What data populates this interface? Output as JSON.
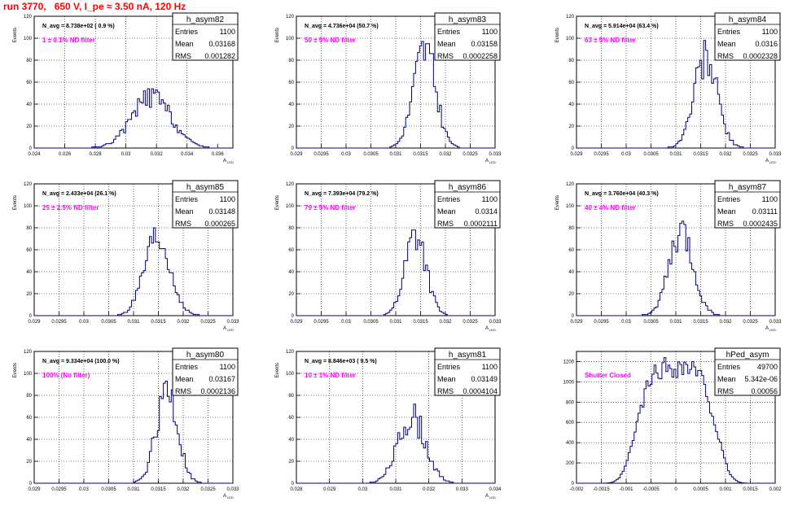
{
  "title": "run 3770,   650 V, I_pe ≈ 3.50 nA, 120 Hz",
  "colors": {
    "title": "#ff0000",
    "histogram": "#000080",
    "annotation": "#ff00ff",
    "grid": "#000000"
  },
  "chart_data": [
    {
      "type": "bar",
      "hist": "h_asym82",
      "ylabel": "Events",
      "xlabel": "A",
      "xlim": [
        0.024,
        0.037
      ],
      "ylim": [
        0,
        120
      ],
      "xticks": [
        0.024,
        0.026,
        0.028,
        0.03,
        0.032,
        0.034,
        0.036
      ],
      "xticklabels": [
        "0.024",
        "0.026",
        "0.028",
        "0.03",
        "0.032",
        "0.034",
        "0.036"
      ],
      "yticks": [
        0,
        20,
        40,
        60,
        80,
        100,
        120
      ],
      "navg": "N_avg = 8.738e+02 ( 0.9 %)",
      "filter": "1 ± 0.1% ND filter",
      "stats": {
        "name": "h_asym82",
        "entries": "1100",
        "mean": "0.03168",
        "rms": "0.001282"
      },
      "hist_params": {
        "mean": 0.03168,
        "sigma": 0.001282,
        "peak": 50,
        "seed": 82
      }
    },
    {
      "type": "bar",
      "hist": "h_asym83",
      "ylabel": "Events",
      "xlabel": "A",
      "xlim": [
        0.029,
        0.033
      ],
      "ylim": [
        0,
        120
      ],
      "xticks": [
        0.029,
        0.0295,
        0.03,
        0.0305,
        0.031,
        0.0315,
        0.032,
        0.0325,
        0.033
      ],
      "xticklabels": [
        "0.029",
        "0.0295",
        "0.03",
        "0.0305",
        "0.031",
        "0.0315",
        "0.032",
        "0.0325",
        "0.033"
      ],
      "yticks": [
        0,
        20,
        40,
        60,
        80,
        100,
        120
      ],
      "navg": "N_avg = 4.736e+04 (50.7 %)",
      "filter": "50 ± 5% ND filter",
      "stats": {
        "name": "h_asym83",
        "entries": "1100",
        "mean": "0.03158",
        "rms": "0.0002258"
      },
      "hist_params": {
        "mean": 0.03158,
        "sigma": 0.0002258,
        "peak": 96,
        "seed": 83
      }
    },
    {
      "type": "bar",
      "hist": "h_asym84",
      "ylabel": "Events",
      "xlabel": "A",
      "xlim": [
        0.029,
        0.033
      ],
      "ylim": [
        0,
        120
      ],
      "xticks": [
        0.029,
        0.0295,
        0.03,
        0.0305,
        0.031,
        0.0315,
        0.032,
        0.0325,
        0.033
      ],
      "xticklabels": [
        "0.029",
        "0.0295",
        "0.03",
        "0.0305",
        "0.031",
        "0.0315",
        "0.032",
        "0.0325",
        "0.033"
      ],
      "yticks": [
        0,
        20,
        40,
        60,
        80,
        100,
        120
      ],
      "navg": "N_avg = 5.914e+04 (63.4 %)",
      "filter": "63 ± 5% ND filter",
      "stats": {
        "name": "h_asym84",
        "entries": "1100",
        "mean": "0.0316",
        "rms": "0.0002328"
      },
      "hist_params": {
        "mean": 0.0316,
        "sigma": 0.0002328,
        "peak": 90,
        "seed": 84
      }
    },
    {
      "type": "bar",
      "hist": "h_asym85",
      "ylabel": "Events",
      "xlabel": "A",
      "xlim": [
        0.029,
        0.033
      ],
      "ylim": [
        0,
        120
      ],
      "xticks": [
        0.029,
        0.0295,
        0.03,
        0.0305,
        0.031,
        0.0315,
        0.032,
        0.0325,
        0.033
      ],
      "xticklabels": [
        "0.029",
        "0.0295",
        "0.03",
        "0.0305",
        "0.031",
        "0.0315",
        "0.032",
        "0.0325",
        "0.033"
      ],
      "yticks": [
        0,
        20,
        40,
        60,
        80,
        100,
        120
      ],
      "navg": "N_avg = 2.433e+04 (26.1 %)",
      "filter": "25 ± 2.5% ND filter",
      "stats": {
        "name": "h_asym85",
        "entries": "1100",
        "mean": "0.03148",
        "rms": "0.000265"
      },
      "hist_params": {
        "mean": 0.03148,
        "sigma": 0.000265,
        "peak": 72,
        "seed": 85
      }
    },
    {
      "type": "bar",
      "hist": "h_asym86",
      "ylabel": "Events",
      "xlabel": "A",
      "xlim": [
        0.029,
        0.033
      ],
      "ylim": [
        0,
        120
      ],
      "xticks": [
        0.029,
        0.0295,
        0.03,
        0.0305,
        0.031,
        0.0315,
        0.032,
        0.0325,
        0.033
      ],
      "xticklabels": [
        "0.029",
        "0.0295",
        "0.03",
        "0.0305",
        "0.031",
        "0.0315",
        "0.032",
        "0.0325",
        "0.033"
      ],
      "yticks": [
        0,
        20,
        40,
        60,
        80,
        100,
        120
      ],
      "navg": "N_avg = 7.393e+04 (79.2 %)",
      "filter": "79 ± 5% ND filter",
      "stats": {
        "name": "h_asym86",
        "entries": "1100",
        "mean": "0.0314",
        "rms": "0.0002111"
      },
      "hist_params": {
        "mean": 0.0314,
        "sigma": 0.0002111,
        "peak": 82,
        "seed": 86
      }
    },
    {
      "type": "bar",
      "hist": "h_asym87",
      "ylabel": "Events",
      "xlabel": "A",
      "xlim": [
        0.029,
        0.033
      ],
      "ylim": [
        0,
        120
      ],
      "xticks": [
        0.029,
        0.0295,
        0.03,
        0.0305,
        0.031,
        0.0315,
        0.032,
        0.0325,
        0.033
      ],
      "xticklabels": [
        "0.029",
        "0.0295",
        "0.03",
        "0.0305",
        "0.031",
        "0.0315",
        "0.032",
        "0.0325",
        "0.033"
      ],
      "yticks": [
        0,
        20,
        40,
        60,
        80,
        100,
        120
      ],
      "navg": "N_avg = 3.760e+04 (40.3 %)",
      "filter": "40 ± 4% ND filter",
      "stats": {
        "name": "h_asym87",
        "entries": "1100",
        "mean": "0.03111",
        "rms": "0.0002435"
      },
      "hist_params": {
        "mean": 0.03111,
        "sigma": 0.0002435,
        "peak": 80,
        "seed": 87
      }
    },
    {
      "type": "bar",
      "hist": "h_asym80",
      "ylabel": "Events",
      "xlabel": "A",
      "xlim": [
        0.029,
        0.033
      ],
      "ylim": [
        0,
        120
      ],
      "xticks": [
        0.029,
        0.0295,
        0.03,
        0.0305,
        0.031,
        0.0315,
        0.032,
        0.0325,
        0.033
      ],
      "xticklabels": [
        "0.029",
        "0.0295",
        "0.03",
        "0.0305",
        "0.031",
        "0.0315",
        "0.032",
        "0.0325",
        "0.033"
      ],
      "yticks": [
        0,
        20,
        40,
        60,
        80,
        100,
        120
      ],
      "navg": "N_avg = 9.334e+04 (100.0 %)",
      "filter": "100% (No filter)",
      "stats": {
        "name": "h_asym80",
        "entries": "1100",
        "mean": "0.03167",
        "rms": "0.0002136"
      },
      "hist_params": {
        "mean": 0.03167,
        "sigma": 0.0002136,
        "peak": 90,
        "seed": 80
      }
    },
    {
      "type": "bar",
      "hist": "h_asym81",
      "ylabel": "Events",
      "xlabel": "A",
      "xlim": [
        0.028,
        0.034
      ],
      "ylim": [
        0,
        120
      ],
      "xticks": [
        0.028,
        0.029,
        0.03,
        0.031,
        0.032,
        0.033,
        0.034
      ],
      "xticklabels": [
        "0.028",
        "0.029",
        "0.03",
        "0.031",
        "0.032",
        "0.033",
        "0.034"
      ],
      "yticks": [
        0,
        20,
        40,
        60,
        80,
        100,
        120
      ],
      "navg": "N_avg = 8.846e+03 ( 9.5 %)",
      "filter": "10 ± 1% ND filter",
      "stats": {
        "name": "h_asym81",
        "entries": "1100",
        "mean": "0.03149",
        "rms": "0.0004104"
      },
      "hist_params": {
        "mean": 0.03149,
        "sigma": 0.0004104,
        "peak": 66,
        "seed": 81
      }
    },
    {
      "type": "bar",
      "hist": "hPed_asym",
      "ylabel": "",
      "xlabel": "",
      "xlim": [
        -0.002,
        0.002
      ],
      "ylim": [
        0,
        1300
      ],
      "xticks": [
        -0.002,
        -0.0015,
        -0.001,
        -0.0005,
        0,
        0.0005,
        0.001,
        0.0015,
        0.002
      ],
      "xticklabels": [
        "-0.002",
        "-0.0015",
        "-0.001",
        "-0.0005",
        "0",
        "0.0005",
        "0.001",
        "0.0015",
        "0.002"
      ],
      "yticks": [
        0,
        200,
        400,
        600,
        800,
        1000,
        1200
      ],
      "navg": "",
      "filter": "Shutter Closed",
      "stats": {
        "name": "hPed_asym",
        "entries": "49700",
        "mean": "5.342e-06",
        "rms": "0.00056"
      },
      "hist_params": {
        "mean": 5.342e-06,
        "sigma": 0.00056,
        "peak": 1260,
        "seed": 99,
        "flat": true
      }
    }
  ]
}
